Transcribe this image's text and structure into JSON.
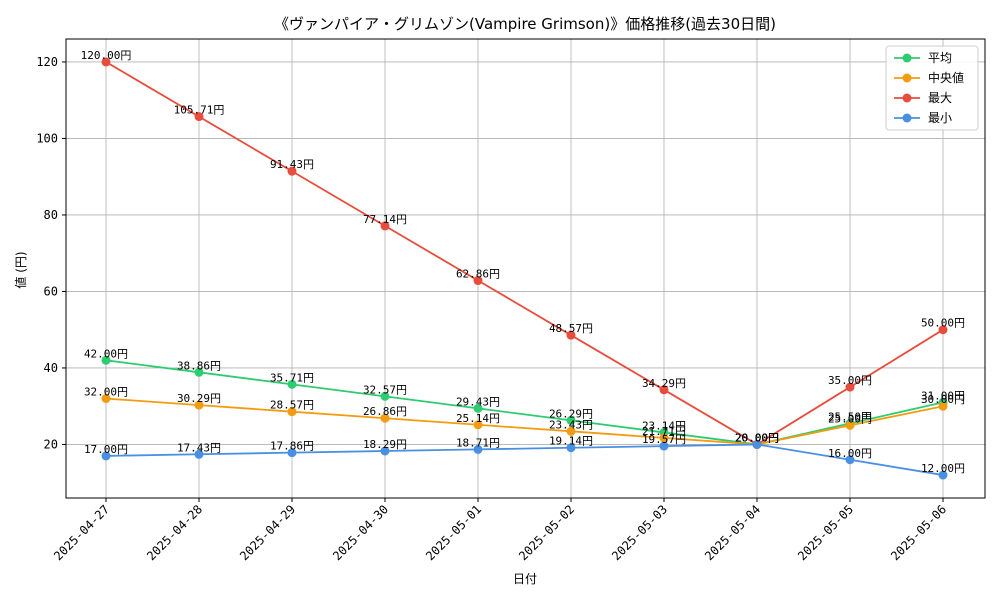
{
  "chart_data": {
    "type": "line",
    "title": "《ヴァンパイア・グリムゾン(Vampire Grimson)》価格推移(過去30日間)",
    "xlabel": "日付",
    "ylabel": "値 (円)",
    "ylim": [
      6,
      126
    ],
    "yticks": [
      20,
      40,
      60,
      80,
      100,
      120
    ],
    "grid": true,
    "legend_position": "top-right",
    "value_suffix": "円",
    "categories": [
      "2025-04-27",
      "2025-04-28",
      "2025-04-29",
      "2025-04-30",
      "2025-05-01",
      "2025-05-02",
      "2025-05-03",
      "2025-05-04",
      "2025-05-05",
      "2025-05-06"
    ],
    "series": [
      {
        "name": "平均",
        "color": "#2ecc71",
        "values": [
          42.0,
          38.86,
          35.71,
          32.57,
          29.43,
          26.29,
          23.14,
          20.0,
          25.5,
          31.0
        ],
        "labels": [
          "42.00円",
          "38.86円",
          "35.71円",
          "32.57円",
          "29.43円",
          "26.29円",
          "23.14円",
          "20.00円",
          "25.50円",
          "31.00円"
        ]
      },
      {
        "name": "中央値",
        "color": "#f39c12",
        "values": [
          32.0,
          30.29,
          28.57,
          26.86,
          25.14,
          23.43,
          21.71,
          20.0,
          25.0,
          30.0
        ],
        "labels": [
          "32.00円",
          "30.29円",
          "28.57円",
          "26.86円",
          "25.14円",
          "23.43円",
          "21.71円",
          "20.00円",
          "25.00円",
          "30.00円"
        ]
      },
      {
        "name": "最大",
        "color": "#e74c3c",
        "values": [
          120.0,
          105.71,
          91.43,
          77.14,
          62.86,
          48.57,
          34.29,
          20.0,
          35.0,
          50.0
        ],
        "labels": [
          "120.00円",
          "105.71円",
          "91.43円",
          "77.14円",
          "62.86円",
          "48.57円",
          "34.29円",
          "20.00円",
          "35.00円",
          "50.00円"
        ]
      },
      {
        "name": "最小",
        "color": "#4a90e2",
        "values": [
          17.0,
          17.43,
          17.86,
          18.29,
          18.71,
          19.14,
          19.57,
          20.0,
          16.0,
          12.0
        ],
        "labels": [
          "17.00円",
          "17.43円",
          "17.86円",
          "18.29円",
          "18.71円",
          "19.14円",
          "19.57円",
          "20.00円",
          "16.00円",
          "12.00円"
        ]
      }
    ]
  }
}
